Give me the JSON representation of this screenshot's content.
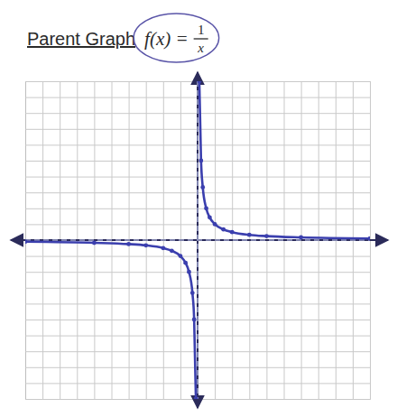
{
  "chart_data": {
    "type": "line",
    "title": "Parent Graph",
    "formula": {
      "lhs": "f(x) =",
      "numerator": "1",
      "denominator": "x"
    },
    "x": [
      -10,
      -6,
      -4,
      -3,
      -2,
      -1.5,
      -1,
      -0.7,
      -0.5,
      -0.3,
      -0.2,
      -0.1,
      0,
      0.1,
      0.2,
      0.3,
      0.5,
      0.7,
      1,
      1.5,
      2,
      3,
      4,
      6,
      10
    ],
    "series": [
      {
        "name": "f(x)",
        "color": "#3b3fae",
        "marker": "circle",
        "line_style": "solid",
        "values": [
          -0.1,
          -0.17,
          -0.25,
          -0.33,
          -0.5,
          -0.67,
          -1,
          -1.43,
          -2,
          -3.33,
          -5,
          -10,
          null,
          10,
          5,
          3.33,
          2,
          1.43,
          1,
          0.67,
          0.5,
          0.33,
          0.25,
          0.17,
          0.1
        ]
      }
    ],
    "asymptotes": [
      {
        "axis": "x",
        "value": 0
      },
      {
        "axis": "y",
        "value": 0
      }
    ],
    "xlim": [
      -10,
      10
    ],
    "ylim": [
      -10,
      10
    ],
    "xticks": [
      -10,
      -9,
      -8,
      -7,
      -6,
      -5,
      -4,
      -3,
      -2,
      -1,
      0,
      1,
      2,
      3,
      4,
      5,
      6,
      7,
      8,
      9,
      10
    ],
    "yticks": [
      -10,
      -9,
      -8,
      -7,
      -6,
      -5,
      -4,
      -3,
      -2,
      -1,
      0,
      1,
      2,
      3,
      4,
      5,
      6,
      7,
      8,
      9,
      10
    ],
    "grid": true,
    "tick_labels": false
  }
}
